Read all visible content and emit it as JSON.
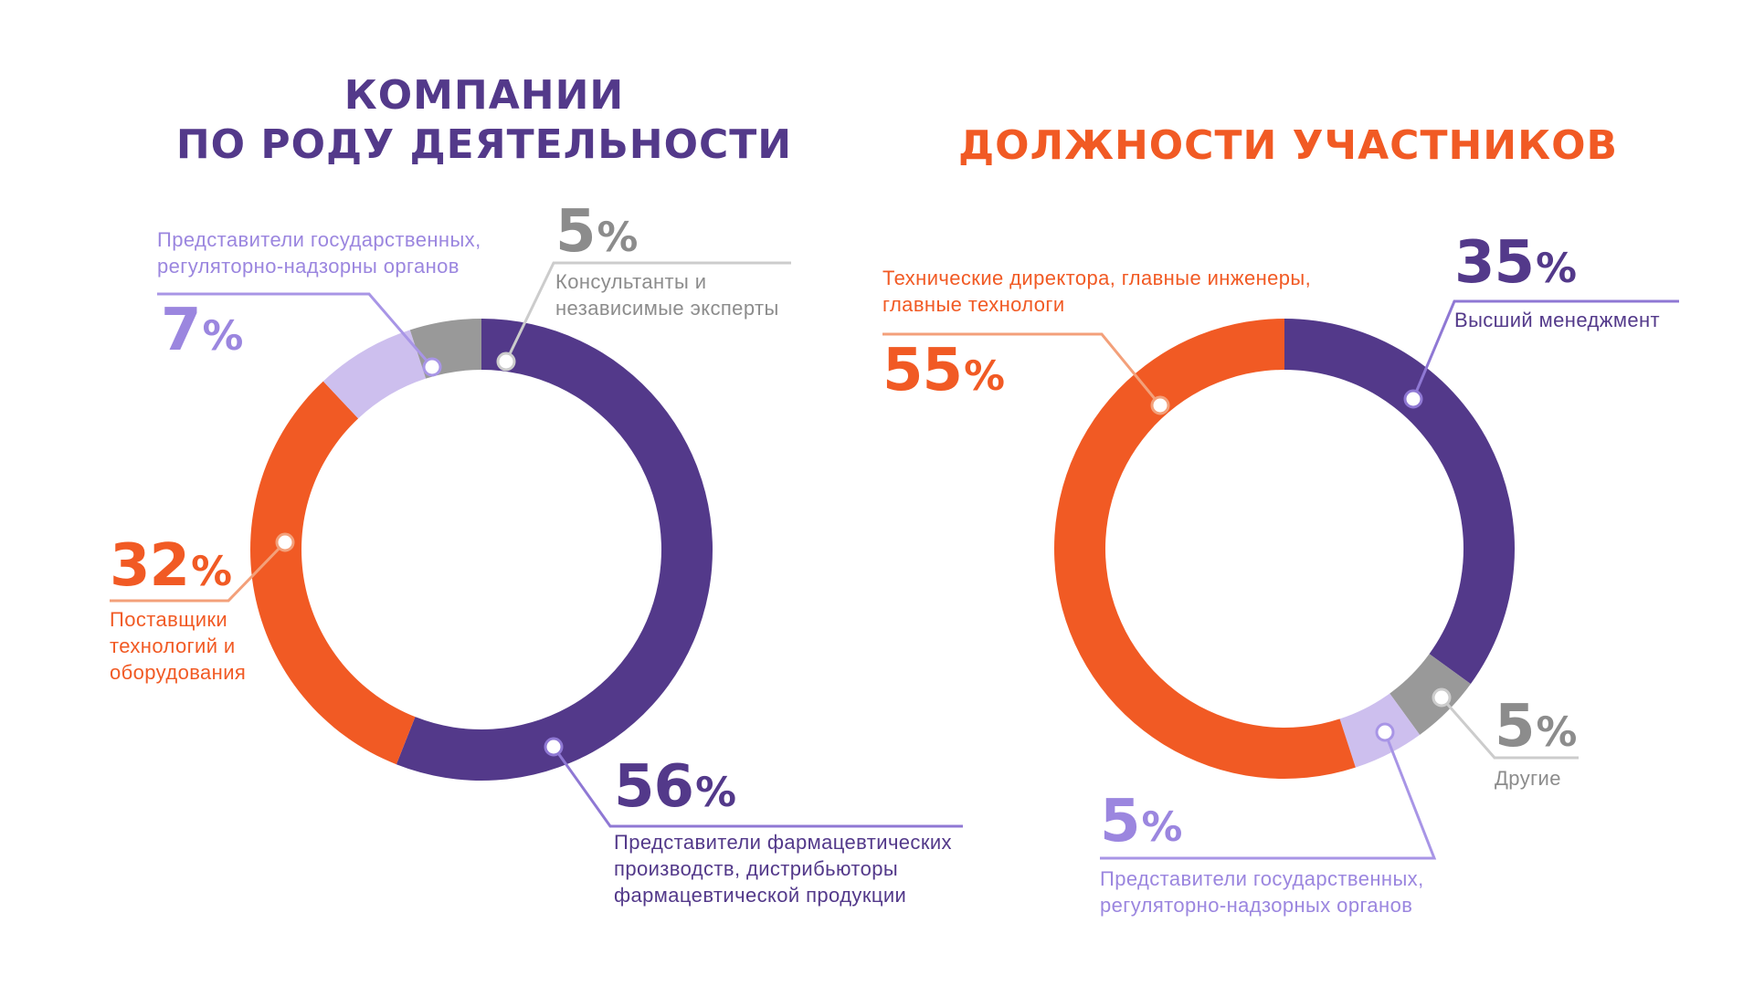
{
  "colors": {
    "purple": "#53398a",
    "orange": "#f15a24",
    "light_purple": "#cdbfee",
    "gray": "#999999",
    "label_light_purple": "#9b86df",
    "label_gray": "#8c8c8c"
  },
  "chart_data": [
    {
      "type": "pie",
      "title": "КОМПАНИИ ПО РОДУ ДЕЯТЕЛЬНОСТИ",
      "title_lines": [
        "КОМПАНИИ",
        "ПО РОДУ ДЕЯТЕЛЬНОСТИ"
      ],
      "slices": [
        {
          "value": 56,
          "value_label": "56",
          "label": "Представители фармацевтических производств, дистрибьюторы фармацевтической продукции",
          "label_lines": [
            "Представители фармацевтических",
            "производств, дистрибьюторы",
            "фармацевтической продукции"
          ],
          "color": "#53398a"
        },
        {
          "value": 32,
          "value_label": "32",
          "label": "Поставщики технологий и оборудования",
          "label_lines": [
            "Поставщики",
            "технологий и",
            "оборудования"
          ],
          "color": "#f15a24"
        },
        {
          "value": 7,
          "value_label": "7",
          "label": "Представители государственных, регуляторно-надзорны органов",
          "label_lines": [
            "Представители государственных,",
            "регуляторно-надзорны органов"
          ],
          "color": "#cdbfee"
        },
        {
          "value": 5,
          "value_label": "5",
          "label": "Консультанты и независимые эксперты",
          "label_lines": [
            "Консультанты и",
            "независимые эксперты"
          ],
          "color": "#999999"
        }
      ]
    },
    {
      "type": "pie",
      "title": "ДОЛЖНОСТИ УЧАСТНИКОВ",
      "title_lines": [
        "ДОЛЖНОСТИ УЧАСТНИКОВ"
      ],
      "slices": [
        {
          "value": 35,
          "value_label": "35",
          "label": "Высший менеджмент",
          "label_lines": [
            "Высший менеджмент"
          ],
          "color": "#53398a"
        },
        {
          "value": 5,
          "value_label": "5",
          "label": "Другие",
          "label_lines": [
            "Другие"
          ],
          "color": "#999999"
        },
        {
          "value": 5,
          "value_label": "5",
          "label": "Представители государственных, регуляторно-надзорных органов",
          "label_lines": [
            "Представители государственных,",
            "регуляторно-надзорных органов"
          ],
          "color": "#cdbfee"
        },
        {
          "value": 55,
          "value_label": "55",
          "label": "Технические директора, главные инженеры, главные технологи",
          "label_lines": [
            "Технические директора, главные инженеры,",
            "главные технологи"
          ],
          "color": "#f15a24"
        }
      ]
    }
  ],
  "percent_sign": "%"
}
